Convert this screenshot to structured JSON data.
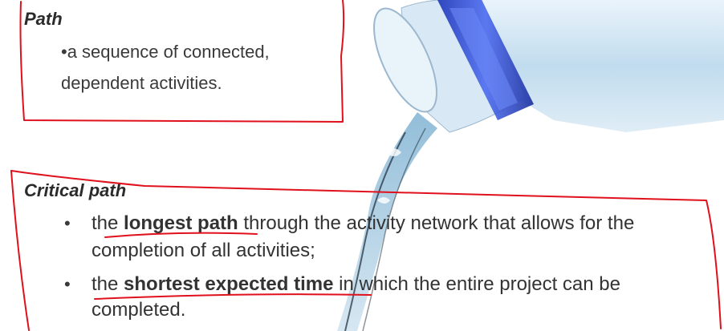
{
  "path_section": {
    "title": "Path",
    "line1": "•a sequence of connected,",
    "line2": "dependent activities."
  },
  "critical_section": {
    "title": "Critical path",
    "bullet_char": "•",
    "item1": {
      "pre": "the ",
      "bold": "longest path",
      "post": " through the activity network that allows for the",
      "line2": "completion of all activities;"
    },
    "item2": {
      "pre": "the ",
      "bold": "shortest expected time",
      "post": " in which the entire project can be",
      "line2": "completed."
    }
  },
  "colors": {
    "ink_red": "#e0101c",
    "bottle_cap_blue": "#2f4fd8",
    "water_blue": "#a9cde4"
  },
  "image": {
    "name": "water-bottle-pouring-photo"
  }
}
